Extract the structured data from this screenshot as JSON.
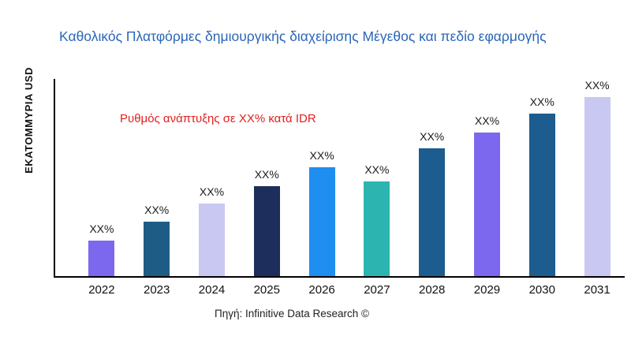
{
  "chart_data": {
    "type": "bar",
    "title": "Καθολικός Πλατφόρμες δημιουργικής διαχείρισης Μέγεθος και πεδίο εφαρμογής",
    "ylabel": "ΕΚΑΤΟΜΜΥΡΙΑ USD",
    "xlabel": "",
    "annotation": "Ρυθμός ανάπτυξης σε XX% κατά IDR",
    "source": "Πηγή: Infinitive Data Research ©",
    "categories": [
      "2022",
      "2023",
      "2024",
      "2025",
      "2026",
      "2027",
      "2028",
      "2029",
      "2030",
      "2031"
    ],
    "values": [
      45,
      69,
      92,
      114,
      138,
      120,
      162,
      182,
      206,
      230
    ],
    "bar_labels": [
      "XX%",
      "XX%",
      "XX%",
      "XX%",
      "XX%",
      "XX%",
      "XX%",
      "XX%",
      "XX%",
      "XX%"
    ],
    "colors": [
      "#7b68ee",
      "#1f5c85",
      "#c9c8f2",
      "#1d2e5c",
      "#1e8ef0",
      "#2cb5b0",
      "#1d5c8f",
      "#7b68ee",
      "#1d5c8f",
      "#c9c8f2"
    ],
    "ylim": [
      0,
      250
    ],
    "grid": false,
    "legend": null,
    "title_color": "#2a66b8",
    "annotation_color": "#e02020"
  }
}
